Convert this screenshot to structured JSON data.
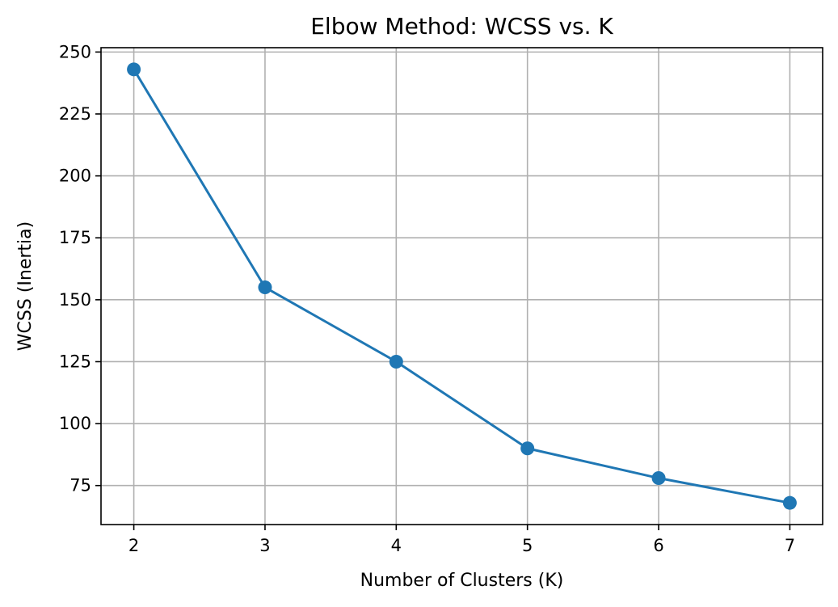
{
  "chart_data": {
    "type": "line",
    "title": "Elbow Method: WCSS vs. K",
    "xlabel": "Number of Clusters (K)",
    "ylabel": "WCSS (Inertia)",
    "x": [
      2,
      3,
      4,
      5,
      6,
      7
    ],
    "series": [
      {
        "values": [
          243,
          155,
          125,
          90,
          78,
          68
        ],
        "color": "#1f77b4",
        "marker": "circle"
      }
    ],
    "xticks": [
      2,
      3,
      4,
      5,
      6,
      7
    ],
    "yticks": [
      75,
      100,
      125,
      150,
      175,
      200,
      225,
      250
    ],
    "xlim": [
      1.75,
      7.25
    ],
    "ylim": [
      59.25,
      251.75
    ],
    "grid": true,
    "grid_color": "#b0b0b0"
  }
}
